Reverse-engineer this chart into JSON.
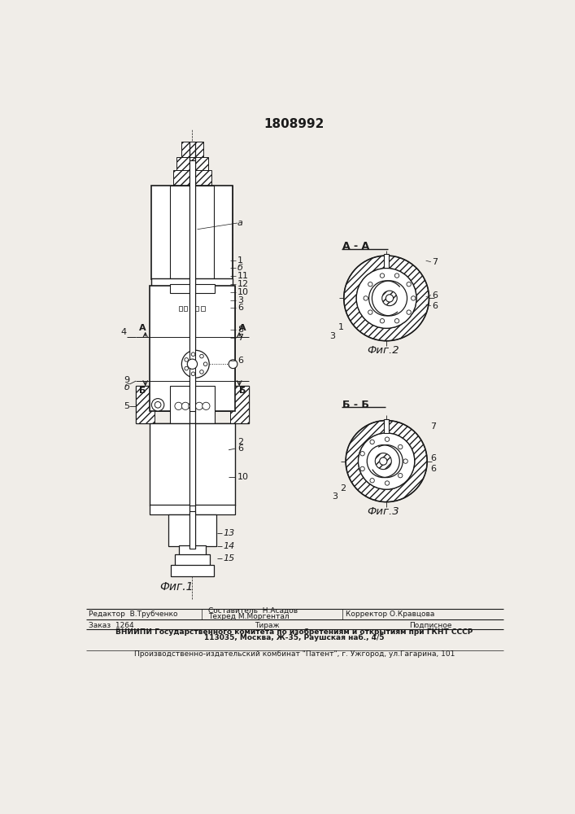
{
  "patent_number": "1808992",
  "bg_color": "#f0ede8",
  "line_color": "#1a1a1a",
  "fig1_caption": "Фиг.1",
  "fig2_caption": "Фиг.2",
  "fig3_caption": "Фиг.3",
  "section_aa": "А - А",
  "section_bb": "Б - Б",
  "footer_line1_left": "Редактор  В.Трубченко",
  "footer_line1_center1": "Составитель  Н.Асадов",
  "footer_line1_center2": "Техред М.Моргентал",
  "footer_line1_right": "Корректор О.Кравцова",
  "footer_line2_left": "Заказ  1264",
  "footer_line2_center": "Тираж",
  "footer_line2_right": "Подписное",
  "footer_line3": "ВНИИПИ Государственного комитета по изобретениям и открытиям при ГКНТ СССР",
  "footer_line4": "113035, Москва, Ж-35, Раушская наб., 4/5",
  "footer_line5": "Производственно-издательский комбинат \"Патент\", г. Ужгород, ул.Гагарина, 101"
}
